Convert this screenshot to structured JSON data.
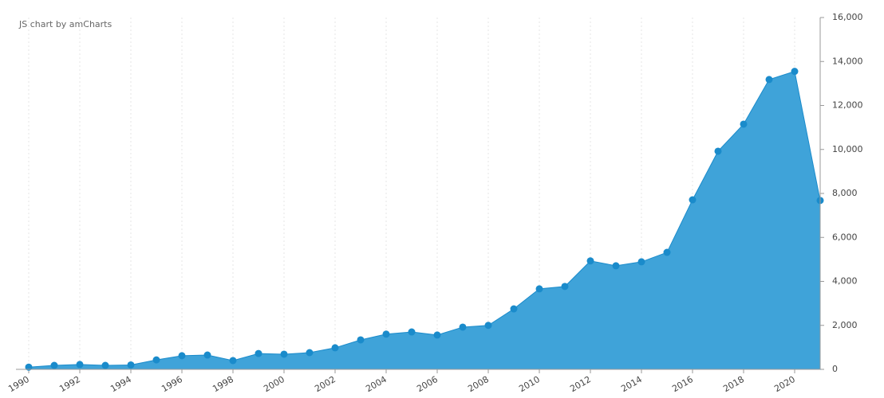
{
  "chart_data": {
    "type": "area",
    "credit": "JS chart by amCharts",
    "x": [
      1990,
      1991,
      1992,
      1993,
      1994,
      1995,
      1996,
      1997,
      1998,
      1999,
      2000,
      2001,
      2002,
      2003,
      2004,
      2005,
      2006,
      2007,
      2008,
      2009,
      2010,
      2011,
      2012,
      2013,
      2014,
      2015,
      2016,
      2017,
      2018,
      2019,
      2020,
      2021
    ],
    "values": [
      100,
      180,
      220,
      180,
      200,
      430,
      620,
      650,
      400,
      720,
      690,
      760,
      980,
      1340,
      1600,
      1700,
      1560,
      1920,
      2000,
      2750,
      3660,
      3770,
      4930,
      4710,
      4890,
      5320,
      7710,
      9920,
      11150,
      13180,
      13550,
      7680
    ],
    "color": "#3fa3d9",
    "line_color": "#1a8bcb",
    "xlim": [
      1989.5,
      2021
    ],
    "xticks": [
      1990,
      1992,
      1994,
      1996,
      1998,
      2000,
      2002,
      2004,
      2006,
      2008,
      2010,
      2012,
      2014,
      2016,
      2018,
      2020
    ],
    "ylim": [
      0,
      16000
    ],
    "yticks": [
      0,
      {
        "value": 2000,
        "label": "2,000"
      },
      {
        "value": 4000,
        "label": "4,000"
      },
      {
        "value": 6000,
        "label": "6,000"
      },
      {
        "value": 8000,
        "label": "8,000"
      },
      {
        "value": 10000,
        "label": "10,000"
      },
      {
        "value": 12000,
        "label": "12,000"
      },
      {
        "value": 14000,
        "label": "14,000"
      },
      {
        "value": 16000,
        "label": "16,000"
      }
    ],
    "grid": true
  }
}
